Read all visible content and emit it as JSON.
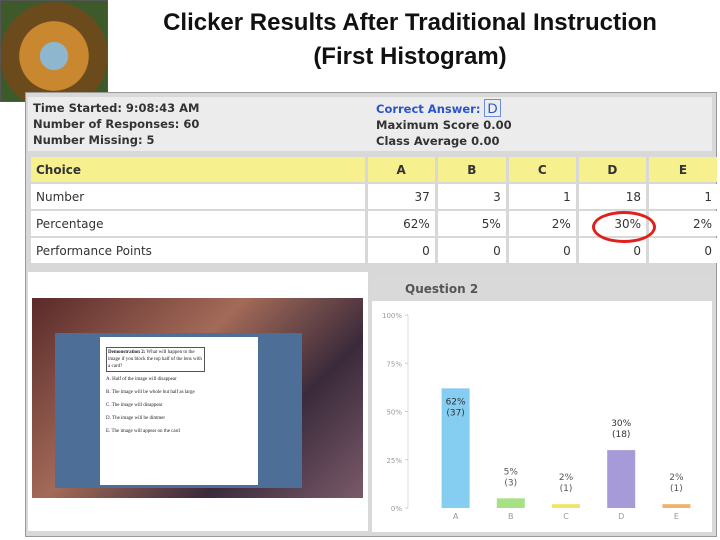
{
  "title": [
    "Clicker Results After Traditional Instruction",
    "(First Histogram)"
  ],
  "info_left": [
    "Time Started: 9:08:43 AM",
    "Number of Responses: 60",
    "Number Missing: 5"
  ],
  "info_right": {
    "correct_answer_label": "Correct Answer:",
    "correct_answer": "D",
    "lines": [
      "Maximum Score 0.00",
      "Class Average 0.00"
    ]
  },
  "table": {
    "header": [
      "Choice",
      "A",
      "B",
      "C",
      "D",
      "E"
    ],
    "rows": [
      [
        "Number",
        "37",
        "3",
        "1",
        "18",
        "1"
      ],
      [
        "Percentage",
        "62%",
        "5%",
        "2%",
        "30%",
        "2%"
      ],
      [
        "Performance Points",
        "0",
        "0",
        "0",
        "0",
        "0"
      ]
    ]
  },
  "demo_doc": {
    "heading": "Demonstration 2:",
    "question": "What will happen to the image if you block the top half of the lens with a card?",
    "options": [
      "A. Half of the image will disappear",
      "B. The image will be whole but half as large",
      "C. The image will disappear",
      "D. The image will be dimmer",
      "E. The image will appear on the card"
    ]
  },
  "chart_data": {
    "type": "bar",
    "title": "Question 2",
    "categories": [
      "A",
      "B",
      "C",
      "D",
      "E"
    ],
    "values": [
      62,
      5,
      2,
      30,
      2
    ],
    "value_labels": [
      "62%",
      "5%",
      "2%",
      "30%",
      "2%"
    ],
    "count_labels": [
      "(37)",
      "(3)",
      "(1)",
      "(18)",
      "(1)"
    ],
    "colors": [
      "#86cdf2",
      "#a6e283",
      "#f1e566",
      "#a79ad9",
      "#eeb46a"
    ],
    "ylim": [
      0,
      100
    ],
    "yticks": [
      {
        "value": 0,
        "label": "0%"
      },
      {
        "value": 25,
        "label": "25%"
      },
      {
        "value": 50,
        "label": "50%"
      },
      {
        "value": 75,
        "label": "75%"
      },
      {
        "value": 100,
        "label": "100%"
      }
    ],
    "grid": false
  }
}
